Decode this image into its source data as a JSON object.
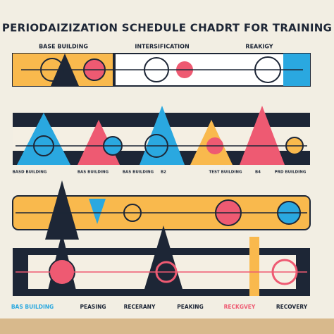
{
  "header": {
    "title": "PERIODAIZIZATION SCHEDULE CHADRT FOR TRAINING"
  },
  "phases": [
    "BASE BUILDING",
    "INTERSIFICATION",
    "REAKIGY"
  ],
  "row_labels": [
    "BASD BUILDING",
    "BAS BUILDING",
    "BAS BUILDING",
    "B2",
    "TEST BUILDING",
    "B4",
    "PRD BUILDING"
  ],
  "footer_labels": [
    "BAS BUILDING",
    "PEASING",
    "RECERANY",
    "PEAKING",
    "RECKGVEY",
    "RECOVERY"
  ]
}
